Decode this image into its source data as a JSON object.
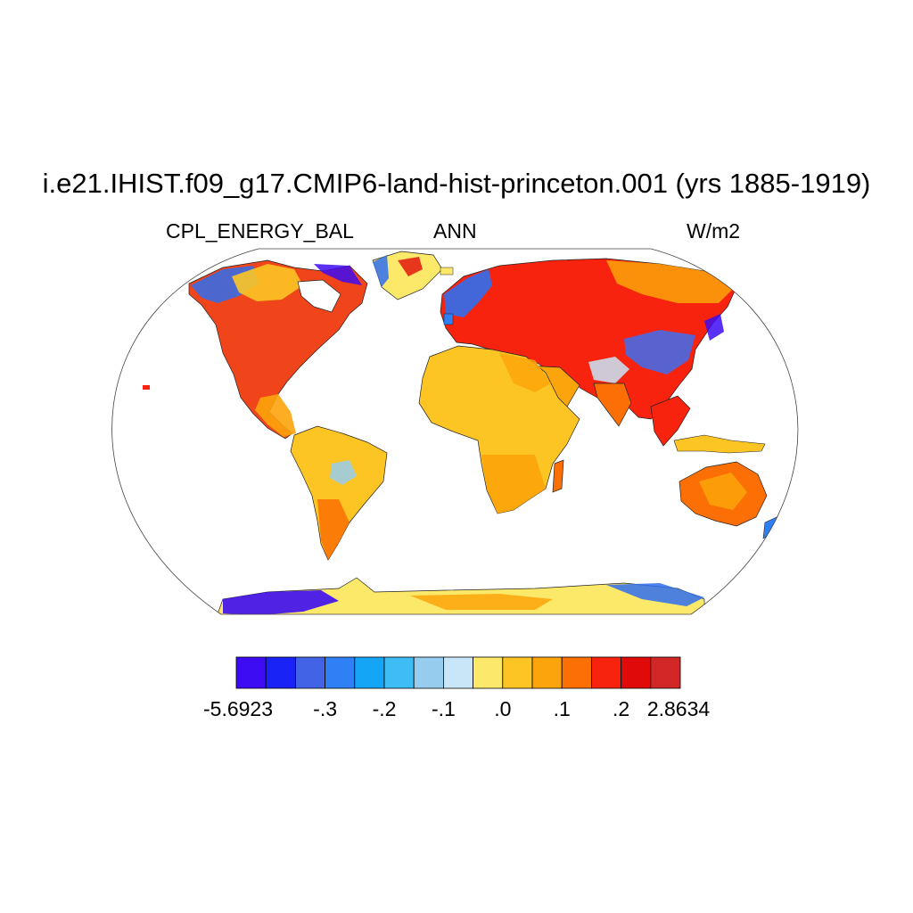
{
  "title": "i.e21.IHIST.f09_g17.CMIP6-land-hist-princeton.001 (yrs 1885-1919)",
  "subtitle_left": "CPL_ENERGY_BAL",
  "subtitle_center": "ANN",
  "subtitle_right": "W/m2",
  "projection": "Robinson",
  "colorbar": {
    "colors": [
      "#3d0cf2",
      "#1a23f6",
      "#4263e6",
      "#2f80f5",
      "#14a5f7",
      "#3dbdf4",
      "#96cdef",
      "#c8e6f8",
      "#fde969",
      "#fdc524",
      "#fca40b",
      "#fc6f04",
      "#f8230e",
      "#e00a0a",
      "#d22727"
    ],
    "labels": [
      "-5.6923",
      "-.3",
      "-.2",
      "-.1",
      ".0",
      ".1",
      ".2",
      "2.8634"
    ]
  }
}
